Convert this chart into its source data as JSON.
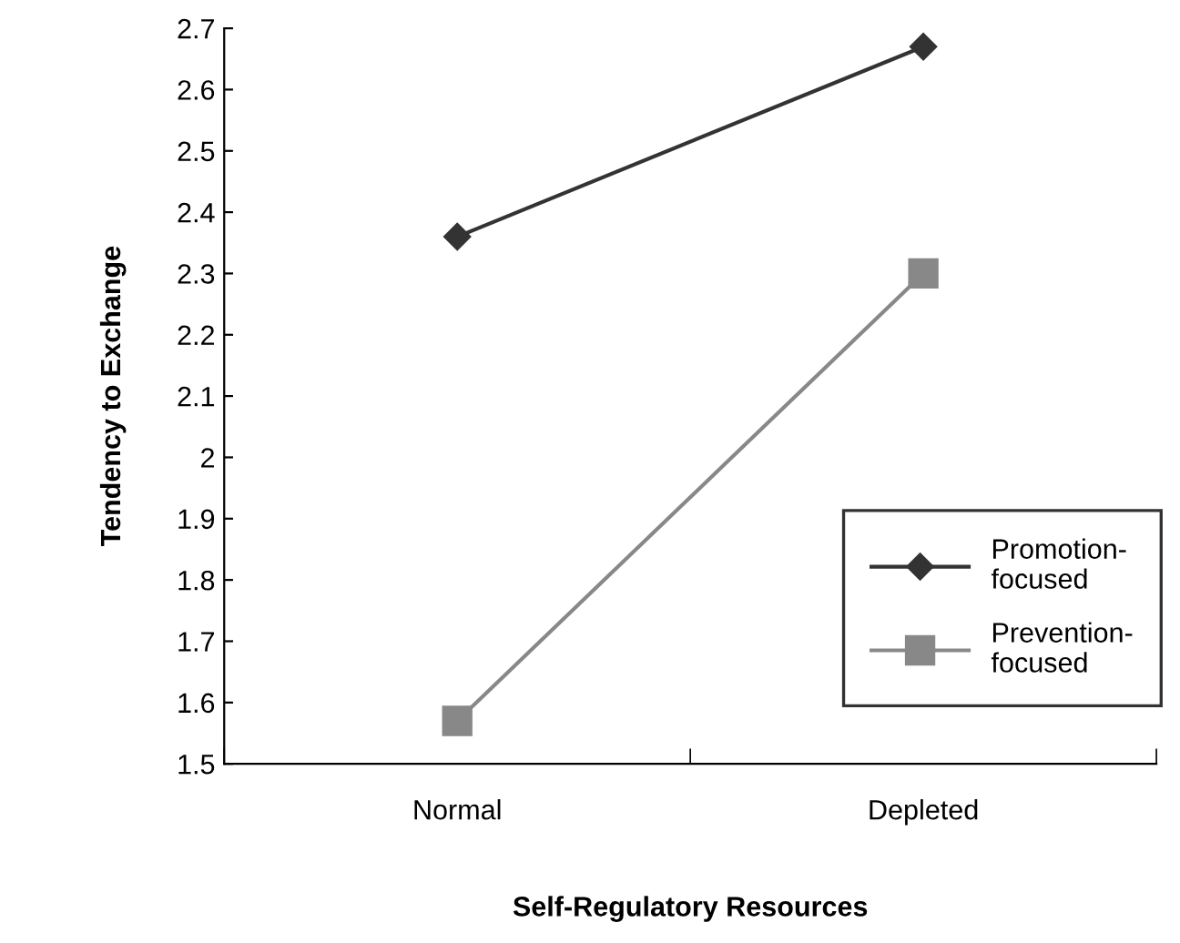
{
  "chart_data": {
    "type": "line",
    "xlabel": "Self-Regulatory Resources",
    "ylabel": "Tendency to Exchange",
    "categories": [
      "Normal",
      "Depleted"
    ],
    "series": [
      {
        "name": "Promotion-\nfocused",
        "color": "#333333",
        "marker": "diamond",
        "values": [
          2.36,
          2.67
        ]
      },
      {
        "name": "Prevention-\nfocused",
        "color": "#888888",
        "marker": "square",
        "values": [
          1.57,
          2.3
        ]
      }
    ],
    "ylim": [
      1.5,
      2.7
    ],
    "yticks": [
      1.5,
      1.6,
      1.7,
      1.8,
      1.9,
      {
        "value": 2.0,
        "label": "2"
      },
      2.1,
      2.2,
      2.3,
      2.4,
      2.5,
      2.6,
      2.7
    ],
    "grid": false,
    "legend": "bottom right",
    "line_style": "solid"
  }
}
